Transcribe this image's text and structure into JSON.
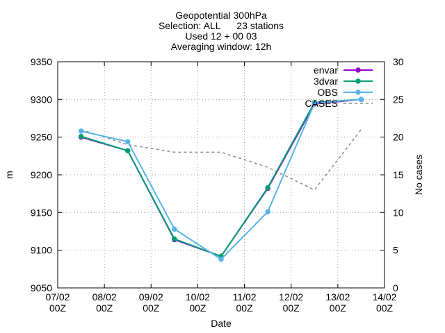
{
  "chart_data": {
    "type": "line",
    "title_lines": [
      "Geopotential 300hPa",
      "Selection: ALL      23 stations",
      "Used 12 + 00 03",
      "Averaging window: 12h"
    ],
    "xlabel": "Date",
    "ylabel": "m",
    "y2label": "No cases",
    "x_ticks": [
      {
        "line1": "07/02",
        "line2": "00Z",
        "day": 7
      },
      {
        "line1": "08/02",
        "line2": "00Z",
        "day": 8
      },
      {
        "line1": "09/02",
        "line2": "00Z",
        "day": 9
      },
      {
        "line1": "10/02",
        "line2": "00Z",
        "day": 10
      },
      {
        "line1": "11/02",
        "line2": "00Z",
        "day": 11
      },
      {
        "line1": "12/02",
        "line2": "00Z",
        "day": 12
      },
      {
        "line1": "13/02",
        "line2": "00Z",
        "day": 13
      },
      {
        "line1": "14/02",
        "line2": "00Z",
        "day": 14
      }
    ],
    "xlim": [
      7,
      14
    ],
    "ylim": [
      9050,
      9350
    ],
    "y_ticks": [
      9050,
      9100,
      9150,
      9200,
      9250,
      9300,
      9350
    ],
    "y2lim": [
      0,
      30
    ],
    "y2_ticks": [
      0,
      5,
      10,
      15,
      20,
      25,
      30
    ],
    "grid": true,
    "legend_position": "top-right",
    "series": [
      {
        "name": "envar",
        "color": "#9400d3",
        "axis": "y",
        "marker": true,
        "dashed": false,
        "points": [
          [
            7.5,
            9250
          ],
          [
            8.5,
            9232
          ],
          [
            9.5,
            9114
          ],
          [
            10.5,
            9092
          ],
          [
            11.5,
            9182
          ],
          [
            12.5,
            9294
          ],
          [
            13.5,
            9300
          ]
        ]
      },
      {
        "name": "3dvar",
        "color": "#009e73",
        "axis": "y",
        "marker": true,
        "dashed": false,
        "points": [
          [
            7.5,
            9251
          ],
          [
            8.5,
            9232
          ],
          [
            9.5,
            9115
          ],
          [
            10.5,
            9092
          ],
          [
            11.5,
            9183
          ],
          [
            12.5,
            9296
          ],
          [
            13.5,
            9300
          ]
        ]
      },
      {
        "name": "OBS",
        "color": "#56b4e9",
        "axis": "y",
        "marker": true,
        "dashed": false,
        "points": [
          [
            7.5,
            9258
          ],
          [
            8.5,
            9244
          ],
          [
            9.5,
            9128
          ],
          [
            10.5,
            9088
          ],
          [
            11.5,
            9151
          ],
          [
            12.5,
            9295
          ],
          [
            13.5,
            9300
          ]
        ]
      },
      {
        "name": "CASES",
        "color": "#888888",
        "axis": "y2",
        "marker": false,
        "dashed": true,
        "points": [
          [
            7.5,
            21
          ],
          [
            8.5,
            19
          ],
          [
            9.5,
            18
          ],
          [
            10.5,
            18
          ],
          [
            11.5,
            16
          ],
          [
            12.5,
            13
          ],
          [
            13.5,
            21
          ]
        ]
      }
    ]
  }
}
